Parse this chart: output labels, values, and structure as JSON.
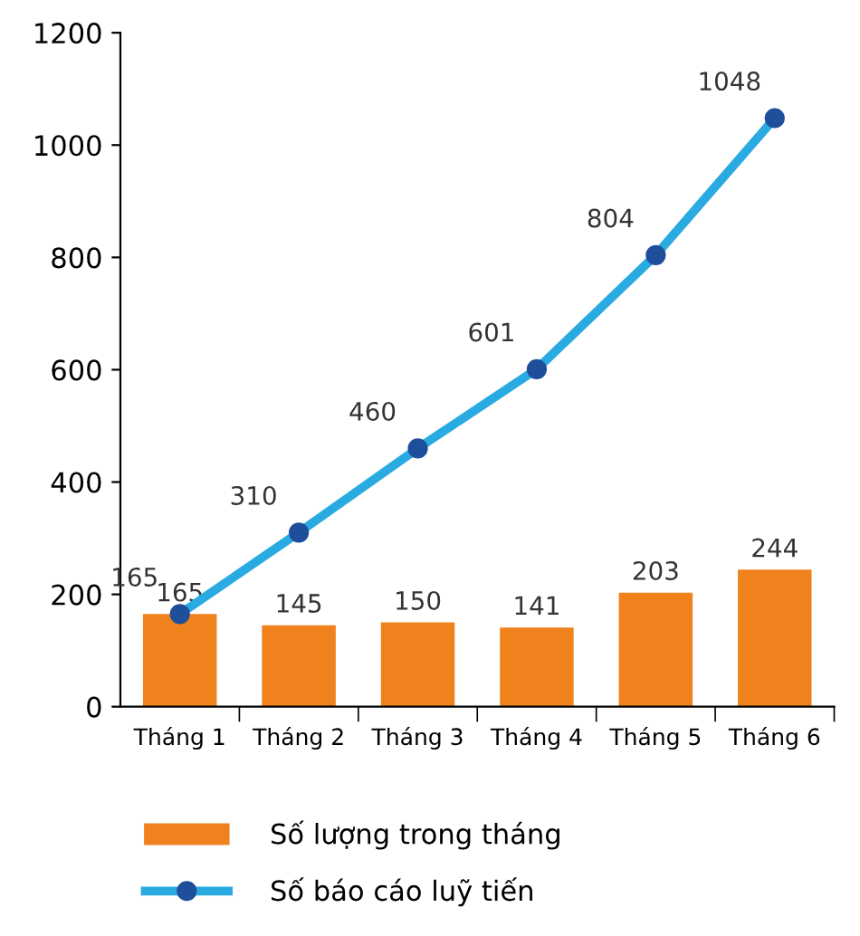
{
  "chart_data": {
    "type": "bar",
    "categories": [
      "Tháng 1",
      "Tháng 2",
      "Tháng 3",
      "Tháng 4",
      "Tháng 5",
      "Tháng 6"
    ],
    "series": [
      {
        "name": "Số lượng trong tháng",
        "color": "#f0821e",
        "values": [
          165,
          145,
          150,
          141,
          203,
          244
        ]
      },
      {
        "name": "Số báo cáo luỹ tiến",
        "type": "line",
        "color": "#29abe2",
        "marker": "circle",
        "values": [
          165,
          310,
          460,
          601,
          804,
          1048
        ]
      }
    ],
    "ylim": [
      0,
      1200
    ],
    "yticks": [
      0,
      200,
      400,
      600,
      800,
      1000,
      1200
    ],
    "grid": false,
    "legend": "bottom",
    "data_labels": true
  }
}
